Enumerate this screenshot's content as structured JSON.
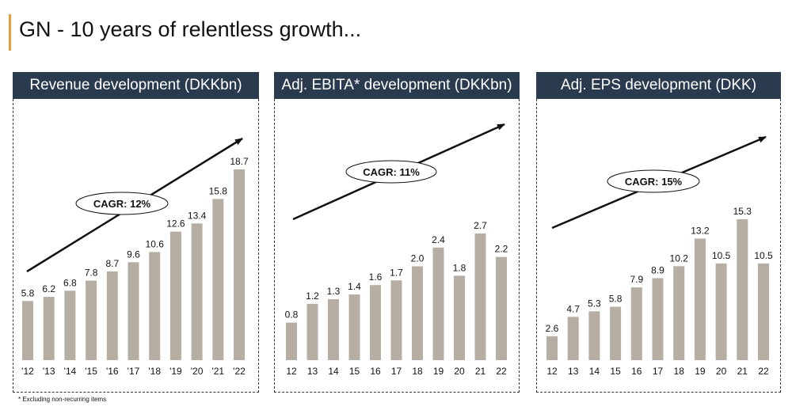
{
  "page": {
    "title": "GN - 10 years of relentless growth...",
    "footnote": "* Excluding non-recurring items",
    "accent_color": "#e0a040",
    "header_color": "#2a3a4f",
    "bar_color": "#b6ada3"
  },
  "chart_data": [
    {
      "type": "bar",
      "title": "Revenue development (DKKbn)",
      "categories": [
        "'12",
        "'13",
        "'14",
        "'15",
        "'16",
        "'17",
        "'18",
        "'19",
        "'20",
        "'21",
        "'22"
      ],
      "values": [
        5.8,
        6.2,
        6.8,
        7.8,
        8.7,
        9.6,
        10.6,
        12.6,
        13.4,
        15.8,
        18.7
      ],
      "value_labels": [
        "5.8",
        "6.2",
        "6.8",
        "7.8",
        "8.7",
        "9.6",
        "10.6",
        "12.6",
        "13.4",
        "15.8",
        "18.7"
      ],
      "ylim": [
        0,
        18.7
      ],
      "grid": false,
      "annotation": "CAGR: 12%"
    },
    {
      "type": "bar",
      "title": "Adj. EBITA* development (DKKbn)",
      "categories": [
        "12",
        "13",
        "14",
        "15",
        "16",
        "17",
        "18",
        "19",
        "20",
        "21",
        "22"
      ],
      "values": [
        0.8,
        1.2,
        1.3,
        1.4,
        1.6,
        1.7,
        2.0,
        2.4,
        1.8,
        2.7,
        2.2
      ],
      "value_labels": [
        "0.8",
        "1.2",
        "1.3",
        "1.4",
        "1.6",
        "1.7",
        "2.0",
        "2.4",
        "1.8",
        "2.7",
        "2.2"
      ],
      "ylim": [
        0,
        2.7
      ],
      "grid": false,
      "annotation": "CAGR: 11%"
    },
    {
      "type": "bar",
      "title": "Adj. EPS development (DKK)",
      "categories": [
        "12",
        "13",
        "14",
        "15",
        "16",
        "17",
        "18",
        "19",
        "20",
        "21",
        "22"
      ],
      "values": [
        2.6,
        4.7,
        5.3,
        5.8,
        7.9,
        8.9,
        10.2,
        13.2,
        10.5,
        15.3,
        10.5
      ],
      "value_labels": [
        "2.6",
        "4.7",
        "5.3",
        "5.8",
        "7.9",
        "8.9",
        "10.2",
        "13.2",
        "10.5",
        "15.3",
        "10.5"
      ],
      "ylim": [
        0,
        15.3
      ],
      "grid": false,
      "annotation": "CAGR: 15%"
    }
  ]
}
